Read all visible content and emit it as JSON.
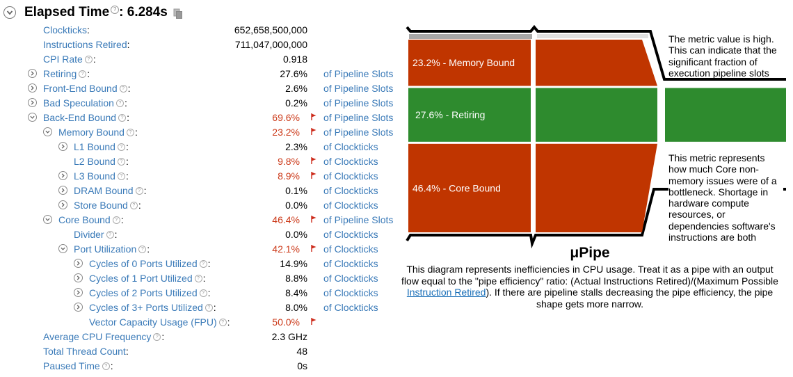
{
  "header": {
    "title_label": "Elapsed Time",
    "title_colon": ":",
    "title_value": "6.284s",
    "help_glyph": "?"
  },
  "metrics": [
    {
      "label": "Clockticks",
      "value": "652,658,500,000",
      "unit": "",
      "indent": 0,
      "expander": false,
      "help": false,
      "flag": false
    },
    {
      "label": "Instructions Retired",
      "value": "711,047,000,000",
      "unit": "",
      "indent": 0,
      "expander": false,
      "help": false,
      "flag": false
    },
    {
      "label": "CPI Rate",
      "value": "0.918",
      "unit": "",
      "indent": 0,
      "expander": false,
      "help": true,
      "flag": false
    },
    {
      "label": "Retiring",
      "value": "27.6%",
      "unit": "of Pipeline Slots",
      "indent": 0,
      "expander": "collapsed",
      "help": true,
      "flag": false
    },
    {
      "label": "Front-End Bound",
      "value": "2.6%",
      "unit": "of Pipeline Slots",
      "indent": 0,
      "expander": "collapsed",
      "help": true,
      "flag": false
    },
    {
      "label": "Bad Speculation",
      "value": "0.2%",
      "unit": "of Pipeline Slots",
      "indent": 0,
      "expander": "collapsed",
      "help": true,
      "flag": false
    },
    {
      "label": "Back-End Bound",
      "value": "69.6%",
      "unit": "of Pipeline Slots",
      "indent": 0,
      "expander": "expanded",
      "help": true,
      "flag": true
    },
    {
      "label": "Memory Bound",
      "value": "23.2%",
      "unit": "of Pipeline Slots",
      "indent": 1,
      "expander": "expanded",
      "help": true,
      "flag": true
    },
    {
      "label": "L1 Bound",
      "value": "2.3%",
      "unit": "of Clockticks",
      "indent": 2,
      "expander": "collapsed",
      "help": true,
      "flag": false
    },
    {
      "label": "L2 Bound",
      "value": "9.8%",
      "unit": "of Clockticks",
      "indent": 2,
      "expander": false,
      "help": true,
      "flag": true
    },
    {
      "label": "L3 Bound",
      "value": "8.9%",
      "unit": "of Clockticks",
      "indent": 2,
      "expander": "collapsed",
      "help": true,
      "flag": true
    },
    {
      "label": "DRAM Bound",
      "value": "0.1%",
      "unit": "of Clockticks",
      "indent": 2,
      "expander": "collapsed",
      "help": true,
      "flag": false
    },
    {
      "label": "Store Bound",
      "value": "0.0%",
      "unit": "of Clockticks",
      "indent": 2,
      "expander": "collapsed",
      "help": true,
      "flag": false
    },
    {
      "label": "Core Bound",
      "value": "46.4%",
      "unit": "of Pipeline Slots",
      "indent": 1,
      "expander": "expanded",
      "help": true,
      "flag": true
    },
    {
      "label": "Divider",
      "value": "0.0%",
      "unit": "of Clockticks",
      "indent": 2,
      "expander": false,
      "help": true,
      "flag": false
    },
    {
      "label": "Port Utilization",
      "value": "42.1%",
      "unit": "of Clockticks",
      "indent": 2,
      "expander": "expanded",
      "help": true,
      "flag": true
    },
    {
      "label": "Cycles of 0 Ports Utilized",
      "value": "14.9%",
      "unit": "of Clockticks",
      "indent": 3,
      "expander": "collapsed",
      "help": true,
      "flag": false
    },
    {
      "label": "Cycles of 1 Port Utilized",
      "value": "8.8%",
      "unit": "of Clockticks",
      "indent": 3,
      "expander": "collapsed",
      "help": true,
      "flag": false
    },
    {
      "label": "Cycles of 2 Ports Utilized",
      "value": "8.4%",
      "unit": "of Clockticks",
      "indent": 3,
      "expander": "collapsed",
      "help": true,
      "flag": false
    },
    {
      "label": "Cycles of 3+ Ports Utilized",
      "value": "8.0%",
      "unit": "of Clockticks",
      "indent": 3,
      "expander": "collapsed",
      "help": true,
      "flag": false
    },
    {
      "label": "Vector Capacity Usage (FPU)",
      "value": "50.0%",
      "unit": "",
      "indent": 3,
      "expander": false,
      "help": true,
      "flag": true
    },
    {
      "label": "Average CPU Frequency",
      "value": "2.3 GHz",
      "unit": "",
      "indent": 0,
      "expander": false,
      "help": true,
      "flag": false
    },
    {
      "label": "Total Thread Count",
      "value": "48",
      "unit": "",
      "indent": 0,
      "expander": false,
      "help": false,
      "flag": false
    },
    {
      "label": "Paused Time",
      "value": "0s",
      "unit": "",
      "indent": 0,
      "expander": false,
      "help": true,
      "flag": false
    }
  ],
  "pipe": {
    "segments": [
      {
        "label": "23.2% - Memory Bound",
        "percent": 23.2,
        "color": "#c03500"
      },
      {
        "label": "27.6% - Retiring",
        "percent": 27.6,
        "color": "#2e8b2e"
      },
      {
        "label": "46.4% - Core Bound",
        "percent": 46.4,
        "color": "#c03500"
      }
    ],
    "tooltip_top": "The metric value is high. This can indicate that the significant fraction of execution pipeline slots",
    "tooltip_bottom": "This metric represents how much Core non-memory issues were of a bottleneck. Shortage in hardware compute resources, or dependencies software's instructions are both",
    "title": "μPipe",
    "description_before": "This diagram represents inefficiencies in CPU usage. Treat it as a pipe with an output flow equal to the \"pipe efficiency\" ratio: (Actual Instructions Retired)/(Maximum Possible ",
    "description_link": "Instruction Retired",
    "description_after": "). If there are pipeline stalls decreasing the pipe efficiency, the pipe shape gets more narrow."
  },
  "colors": {
    "link": "#3a7ab8",
    "flagged_value": "#cc3a1a",
    "flag": "#cc2a1a",
    "bound": "#c03500",
    "retiring": "#2e8b2e"
  }
}
